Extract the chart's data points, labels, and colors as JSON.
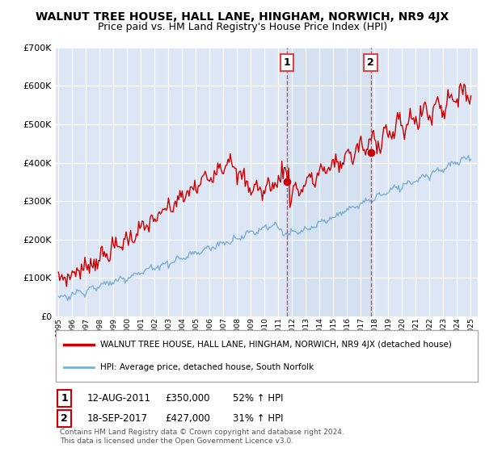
{
  "title": "WALNUT TREE HOUSE, HALL LANE, HINGHAM, NORWICH, NR9 4JX",
  "subtitle": "Price paid vs. HM Land Registry's House Price Index (HPI)",
  "ylim": [
    0,
    700000
  ],
  "yticks": [
    0,
    100000,
    200000,
    300000,
    400000,
    500000,
    600000,
    700000
  ],
  "ytick_labels": [
    "£0",
    "£100K",
    "£200K",
    "£300K",
    "£400K",
    "£500K",
    "£600K",
    "£700K"
  ],
  "xlim_start": 1994.8,
  "xlim_end": 2025.5,
  "vline1_x": 2011.62,
  "vline2_x": 2017.72,
  "point1_x": 2011.62,
  "point1_y": 350000,
  "point2_x": 2017.72,
  "point2_y": 427000,
  "red_color": "#cc0000",
  "blue_color": "#7bafd4",
  "vline_color": "#dd4444",
  "shade_color": "#d0dff0",
  "bg_color": "#dce6f5",
  "grid_color": "#ffffff",
  "legend1_text": "WALNUT TREE HOUSE, HALL LANE, HINGHAM, NORWICH, NR9 4JX (detached house)",
  "legend2_text": "HPI: Average price, detached house, South Norfolk",
  "annotation1": [
    "1",
    "12-AUG-2011",
    "£350,000",
    "52% ↑ HPI"
  ],
  "annotation2": [
    "2",
    "18-SEP-2017",
    "£427,000",
    "31% ↑ HPI"
  ],
  "footer": "Contains HM Land Registry data © Crown copyright and database right 2024.\nThis data is licensed under the Open Government Licence v3.0.",
  "title_fontsize": 10,
  "subtitle_fontsize": 9
}
